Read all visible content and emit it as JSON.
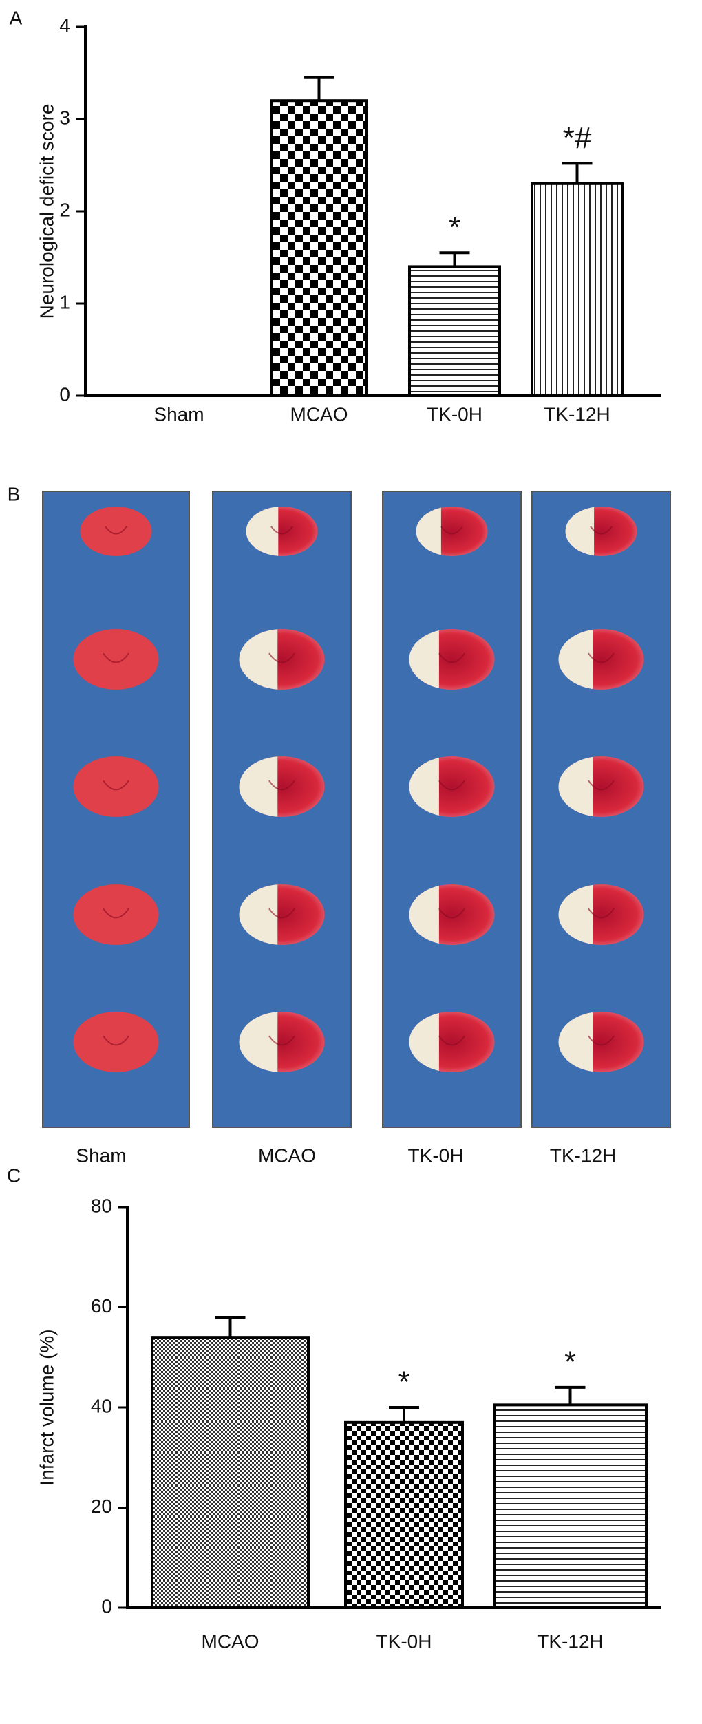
{
  "chart_data": [
    {
      "type": "bar",
      "panel": "A",
      "ylabel": "Neurological deficit score",
      "categories": [
        "Sham",
        "MCAO",
        "TK-0H",
        "TK-12H"
      ],
      "values": [
        0,
        3.2,
        1.4,
        2.3
      ],
      "errors": [
        0,
        0.25,
        0.15,
        0.22
      ],
      "annotations": [
        null,
        null,
        "*",
        "*#"
      ],
      "patterns": [
        "checker",
        "checker",
        "hlines",
        "vlines"
      ],
      "ylim": [
        0,
        4
      ],
      "yticks": [
        0,
        1,
        2,
        3,
        4
      ]
    },
    {
      "type": "bar",
      "panel": "C",
      "ylabel": "Infarct volume (%)",
      "categories": [
        "MCAO",
        "TK-0H",
        "TK-12H"
      ],
      "values": [
        54,
        37,
        40.5
      ],
      "errors": [
        4,
        3,
        3.5
      ],
      "annotations": [
        null,
        "*",
        "*"
      ],
      "patterns": [
        "crosshatch",
        "checker-small",
        "hlines"
      ],
      "ylim": [
        0,
        80
      ],
      "yticks": [
        0,
        20,
        40,
        60,
        80
      ]
    }
  ],
  "photo_panel": {
    "panel": "B",
    "labels": [
      "Sham",
      "MCAO",
      "TK-0H",
      "TK-12H"
    ]
  }
}
